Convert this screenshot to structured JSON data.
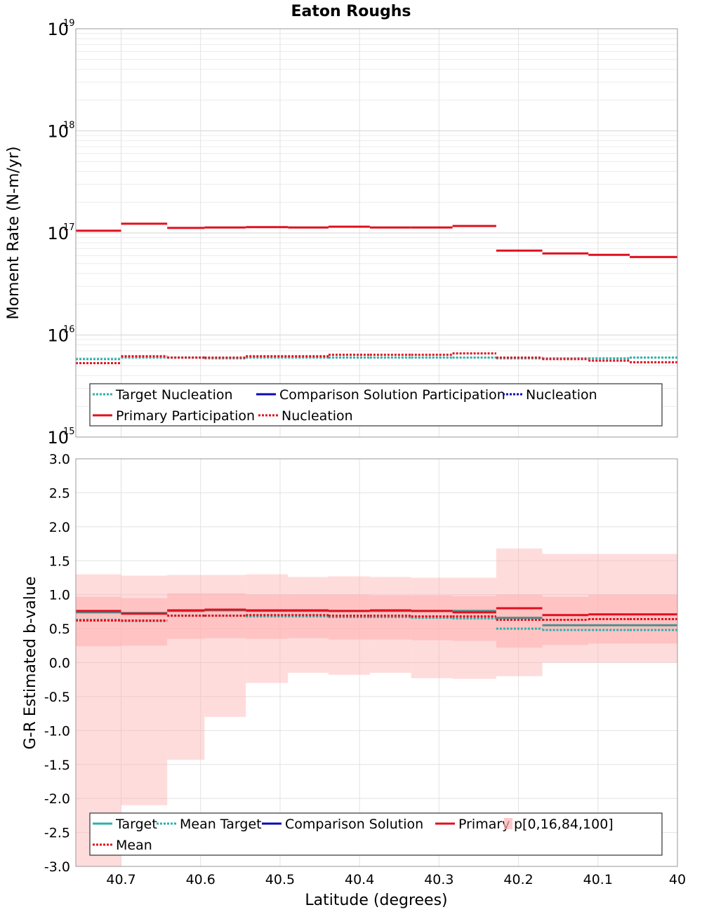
{
  "chart_data": [
    {
      "type": "line",
      "title": "Eaton Roughs",
      "ylabel": "Moment Rate (N-m/yr)",
      "xlabel": "",
      "y_scale": "log",
      "ylim": [
        1000000000000000.0,
        1e+19
      ],
      "xlim": [
        40.757,
        40.0
      ],
      "x_reversed": true,
      "grid": true,
      "y_ticks": [
        {
          "base": "10",
          "exp": "15"
        },
        {
          "base": "10",
          "exp": "16"
        },
        {
          "base": "10",
          "exp": "17"
        },
        {
          "base": "10",
          "exp": "18"
        },
        {
          "base": "10",
          "exp": "19"
        }
      ],
      "y_tick_values": [
        1000000000000000.0,
        1e+16,
        1e+17,
        1e+18,
        1e+19
      ],
      "section_edges": [
        40.757,
        40.7,
        40.642,
        40.595,
        40.543,
        40.49,
        40.439,
        40.387,
        40.335,
        40.283,
        40.228,
        40.17,
        40.112,
        40.06,
        40.0
      ],
      "series": [
        {
          "name": "Target Nucleation",
          "style": "dotted",
          "color": "#2ab1a9",
          "values": [
            5800000000000000.0,
            6000000000000000.0,
            6000000000000000.0,
            5900000000000000.0,
            6000000000000000.0,
            6000000000000000.0,
            6000000000000000.0,
            6000000000000000.0,
            6000000000000000.0,
            6000000000000000.0,
            5900000000000000.0,
            5900000000000000.0,
            5900000000000000.0,
            6000000000000000.0
          ]
        },
        {
          "name": "Comparison Solution Participation",
          "style": "solid",
          "color": "#0a0ab4",
          "values": []
        },
        {
          "name": "Nucleation",
          "style": "dotted",
          "color": "#0a0ab4",
          "values": []
        },
        {
          "name": "Primary Participation",
          "style": "solid",
          "color": "#e0101e",
          "values": [
            1.05e+17,
            1.23e+17,
            1.12e+17,
            1.13e+17,
            1.14e+17,
            1.13e+17,
            1.15e+17,
            1.13e+17,
            1.13e+17,
            1.17e+17,
            6.7e+16,
            6.3e+16,
            6.1e+16,
            5.8e+16
          ]
        },
        {
          "name": "Nucleation",
          "style": "dotted",
          "color": "#e0101e",
          "values": [
            5300000000000000.0,
            6200000000000000.0,
            6000000000000000.0,
            6000000000000000.0,
            6200000000000000.0,
            6200000000000000.0,
            6400000000000000.0,
            6400000000000000.0,
            6400000000000000.0,
            6600000000000000.0,
            6000000000000000.0,
            5800000000000000.0,
            5600000000000000.0,
            5400000000000000.0
          ]
        }
      ],
      "legend": {
        "position": "bottom",
        "rows": [
          [
            {
              "label": "Target Nucleation",
              "style": "dotted",
              "color": "#2ab1a9"
            },
            {
              "label": "Comparison Solution Participation",
              "style": "solid",
              "color": "#0a0ab4"
            },
            {
              "label": "Nucleation",
              "style": "dotted",
              "color": "#0a0ab4"
            }
          ],
          [
            {
              "label": "Primary Participation",
              "style": "solid",
              "color": "#e0101e"
            },
            {
              "label": "Nucleation",
              "style": "dotted",
              "color": "#e0101e"
            }
          ]
        ]
      }
    },
    {
      "type": "line",
      "title": "",
      "ylabel": "G-R Estimated b-value",
      "xlabel": "Latitude (degrees)",
      "ylim": [
        -3.0,
        3.0
      ],
      "xlim": [
        40.757,
        40.0
      ],
      "x_reversed": true,
      "grid": true,
      "y_ticks": [
        "-3.0",
        "-2.5",
        "-2.0",
        "-1.5",
        "-1.0",
        "-0.5",
        "0.0",
        "0.5",
        "1.0",
        "1.5",
        "2.0",
        "2.5",
        "3.0"
      ],
      "y_tick_values": [
        -3.0,
        -2.5,
        -2.0,
        -1.5,
        -1.0,
        -0.5,
        0.0,
        0.5,
        1.0,
        1.5,
        2.0,
        2.5,
        3.0
      ],
      "x_ticks": [
        "40.7",
        "40.6",
        "40.5",
        "40.4",
        "40.3",
        "40.2",
        "40.1",
        "40"
      ],
      "x_tick_values": [
        40.7,
        40.6,
        40.5,
        40.4,
        40.3,
        40.2,
        40.1,
        40.0
      ],
      "section_edges": [
        40.757,
        40.7,
        40.642,
        40.595,
        40.543,
        40.49,
        40.439,
        40.387,
        40.335,
        40.283,
        40.228,
        40.17,
        40.112,
        40.06,
        40.0
      ],
      "bands": {
        "p0": [
          -3.0,
          -2.1,
          -1.43,
          -0.8,
          -0.3,
          -0.15,
          -0.18,
          -0.15,
          -0.23,
          -0.24,
          -0.2,
          0.0,
          0.0,
          0.0
        ],
        "p16": [
          0.24,
          0.25,
          0.35,
          0.36,
          0.35,
          0.36,
          0.34,
          0.34,
          0.33,
          0.32,
          0.22,
          0.26,
          0.28,
          0.28
        ],
        "p84": [
          0.97,
          0.95,
          1.02,
          1.02,
          1.0,
          1.0,
          1.0,
          0.99,
          0.99,
          0.98,
          1.0,
          0.97,
          1.0,
          1.0
        ],
        "p100": [
          1.3,
          1.28,
          1.29,
          1.29,
          1.3,
          1.26,
          1.27,
          1.26,
          1.25,
          1.25,
          1.68,
          1.6,
          1.6,
          1.6
        ],
        "color": "#ffb2b2"
      },
      "series": [
        {
          "name": "Target",
          "style": "solid",
          "color": "#2ab1a9",
          "values": [
            0.74,
            0.73,
            0.76,
            0.77,
            0.76,
            0.76,
            0.76,
            0.76,
            0.76,
            0.76,
            0.66,
            0.55,
            0.55,
            0.55
          ]
        },
        {
          "name": "Mean Target",
          "style": "dotted",
          "color": "#2ab1a9",
          "values": [
            0.63,
            0.61,
            0.69,
            0.69,
            0.68,
            0.68,
            0.67,
            0.67,
            0.66,
            0.65,
            0.5,
            0.48,
            0.48,
            0.48
          ]
        },
        {
          "name": "Comparison Solution",
          "style": "solid",
          "color": "#0a0ab4",
          "values": []
        },
        {
          "name": "Primary",
          "style": "solid",
          "color": "#e0101e",
          "values": [
            0.76,
            0.72,
            0.77,
            0.78,
            0.77,
            0.77,
            0.76,
            0.77,
            0.76,
            0.74,
            0.8,
            0.7,
            0.71,
            0.71
          ]
        },
        {
          "name": "Mean",
          "style": "dotted",
          "color": "#e0101e",
          "values": [
            0.62,
            0.62,
            0.69,
            0.69,
            0.7,
            0.7,
            0.69,
            0.69,
            0.68,
            0.68,
            0.63,
            0.63,
            0.64,
            0.64
          ]
        }
      ],
      "legend": {
        "position": "bottom",
        "rows": [
          [
            {
              "label": "Target",
              "style": "solid",
              "color": "#2ab1a9"
            },
            {
              "label": "Mean Target",
              "style": "dotted",
              "color": "#2ab1a9"
            },
            {
              "label": "Comparison Solution",
              "style": "solid",
              "color": "#0a0ab4"
            },
            {
              "label": "Primary",
              "style": "solid",
              "color": "#e0101e"
            },
            {
              "label": "p[0,16,84,100]",
              "style": "band",
              "color": "#ffb2b2"
            }
          ],
          [
            {
              "label": "Mean",
              "style": "dotted",
              "color": "#e0101e"
            }
          ]
        ]
      }
    }
  ]
}
